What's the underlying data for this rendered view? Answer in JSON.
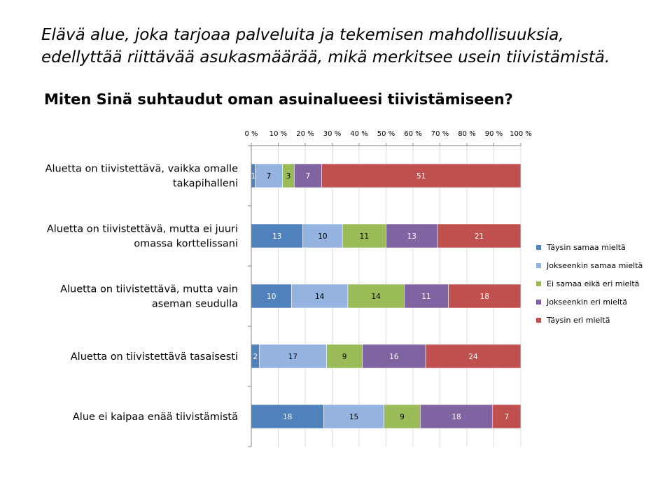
{
  "slide": {
    "intro": "Elävä alue, joka tarjoaa palveluita ja tekemisen mahdollisuuksia, edellyttää riittävää asukasmäärää, mikä merkitsee usein tiivistämistä."
  },
  "chart_data": {
    "type": "bar",
    "orientation": "horizontal",
    "stacked": "percent",
    "title": "Miten Sinä suhtaudut oman asuinalueesi tiivistämiseen?",
    "categories": [
      [
        "Aluetta on tiivistettävä, vaikka omalle",
        "takapihalleni"
      ],
      [
        "Aluetta on tiivistettävä, mutta ei juuri",
        "omassa korttelissani"
      ],
      [
        "Aluetta on tiivistettävä, mutta vain",
        "aseman seudulla"
      ],
      [
        "Aluetta on tiivistettävä tasaisesti"
      ],
      [
        "Alue ei kaipaa enää tiivistämistä"
      ]
    ],
    "series": [
      {
        "name": "Täysin samaa mieltä",
        "color": "#4F81BD",
        "values": [
          1,
          13,
          10,
          2,
          18
        ]
      },
      {
        "name": "Jokseenkin samaa mieltä",
        "color": "#95B3E0",
        "values": [
          7,
          10,
          14,
          17,
          15
        ]
      },
      {
        "name": "Ei samaa eikä eri mieltä",
        "color": "#9BBB59",
        "values": [
          3,
          11,
          14,
          9,
          9
        ]
      },
      {
        "name": "Jokseenkin eri mieltä",
        "color": "#8064A2",
        "values": [
          7,
          13,
          11,
          16,
          18
        ]
      },
      {
        "name": "Täysin eri mieltä",
        "color": "#C0504D",
        "values": [
          51,
          21,
          18,
          24,
          7
        ]
      }
    ],
    "xticks": [
      "0 %",
      "10 %",
      "20 %",
      "30 %",
      "40 %",
      "50 %",
      "60 %",
      "70 %",
      "80 %",
      "90 %",
      "100 %"
    ],
    "xlim": [
      0,
      100
    ],
    "axis_position": "top",
    "grid": true,
    "legend": "right"
  }
}
